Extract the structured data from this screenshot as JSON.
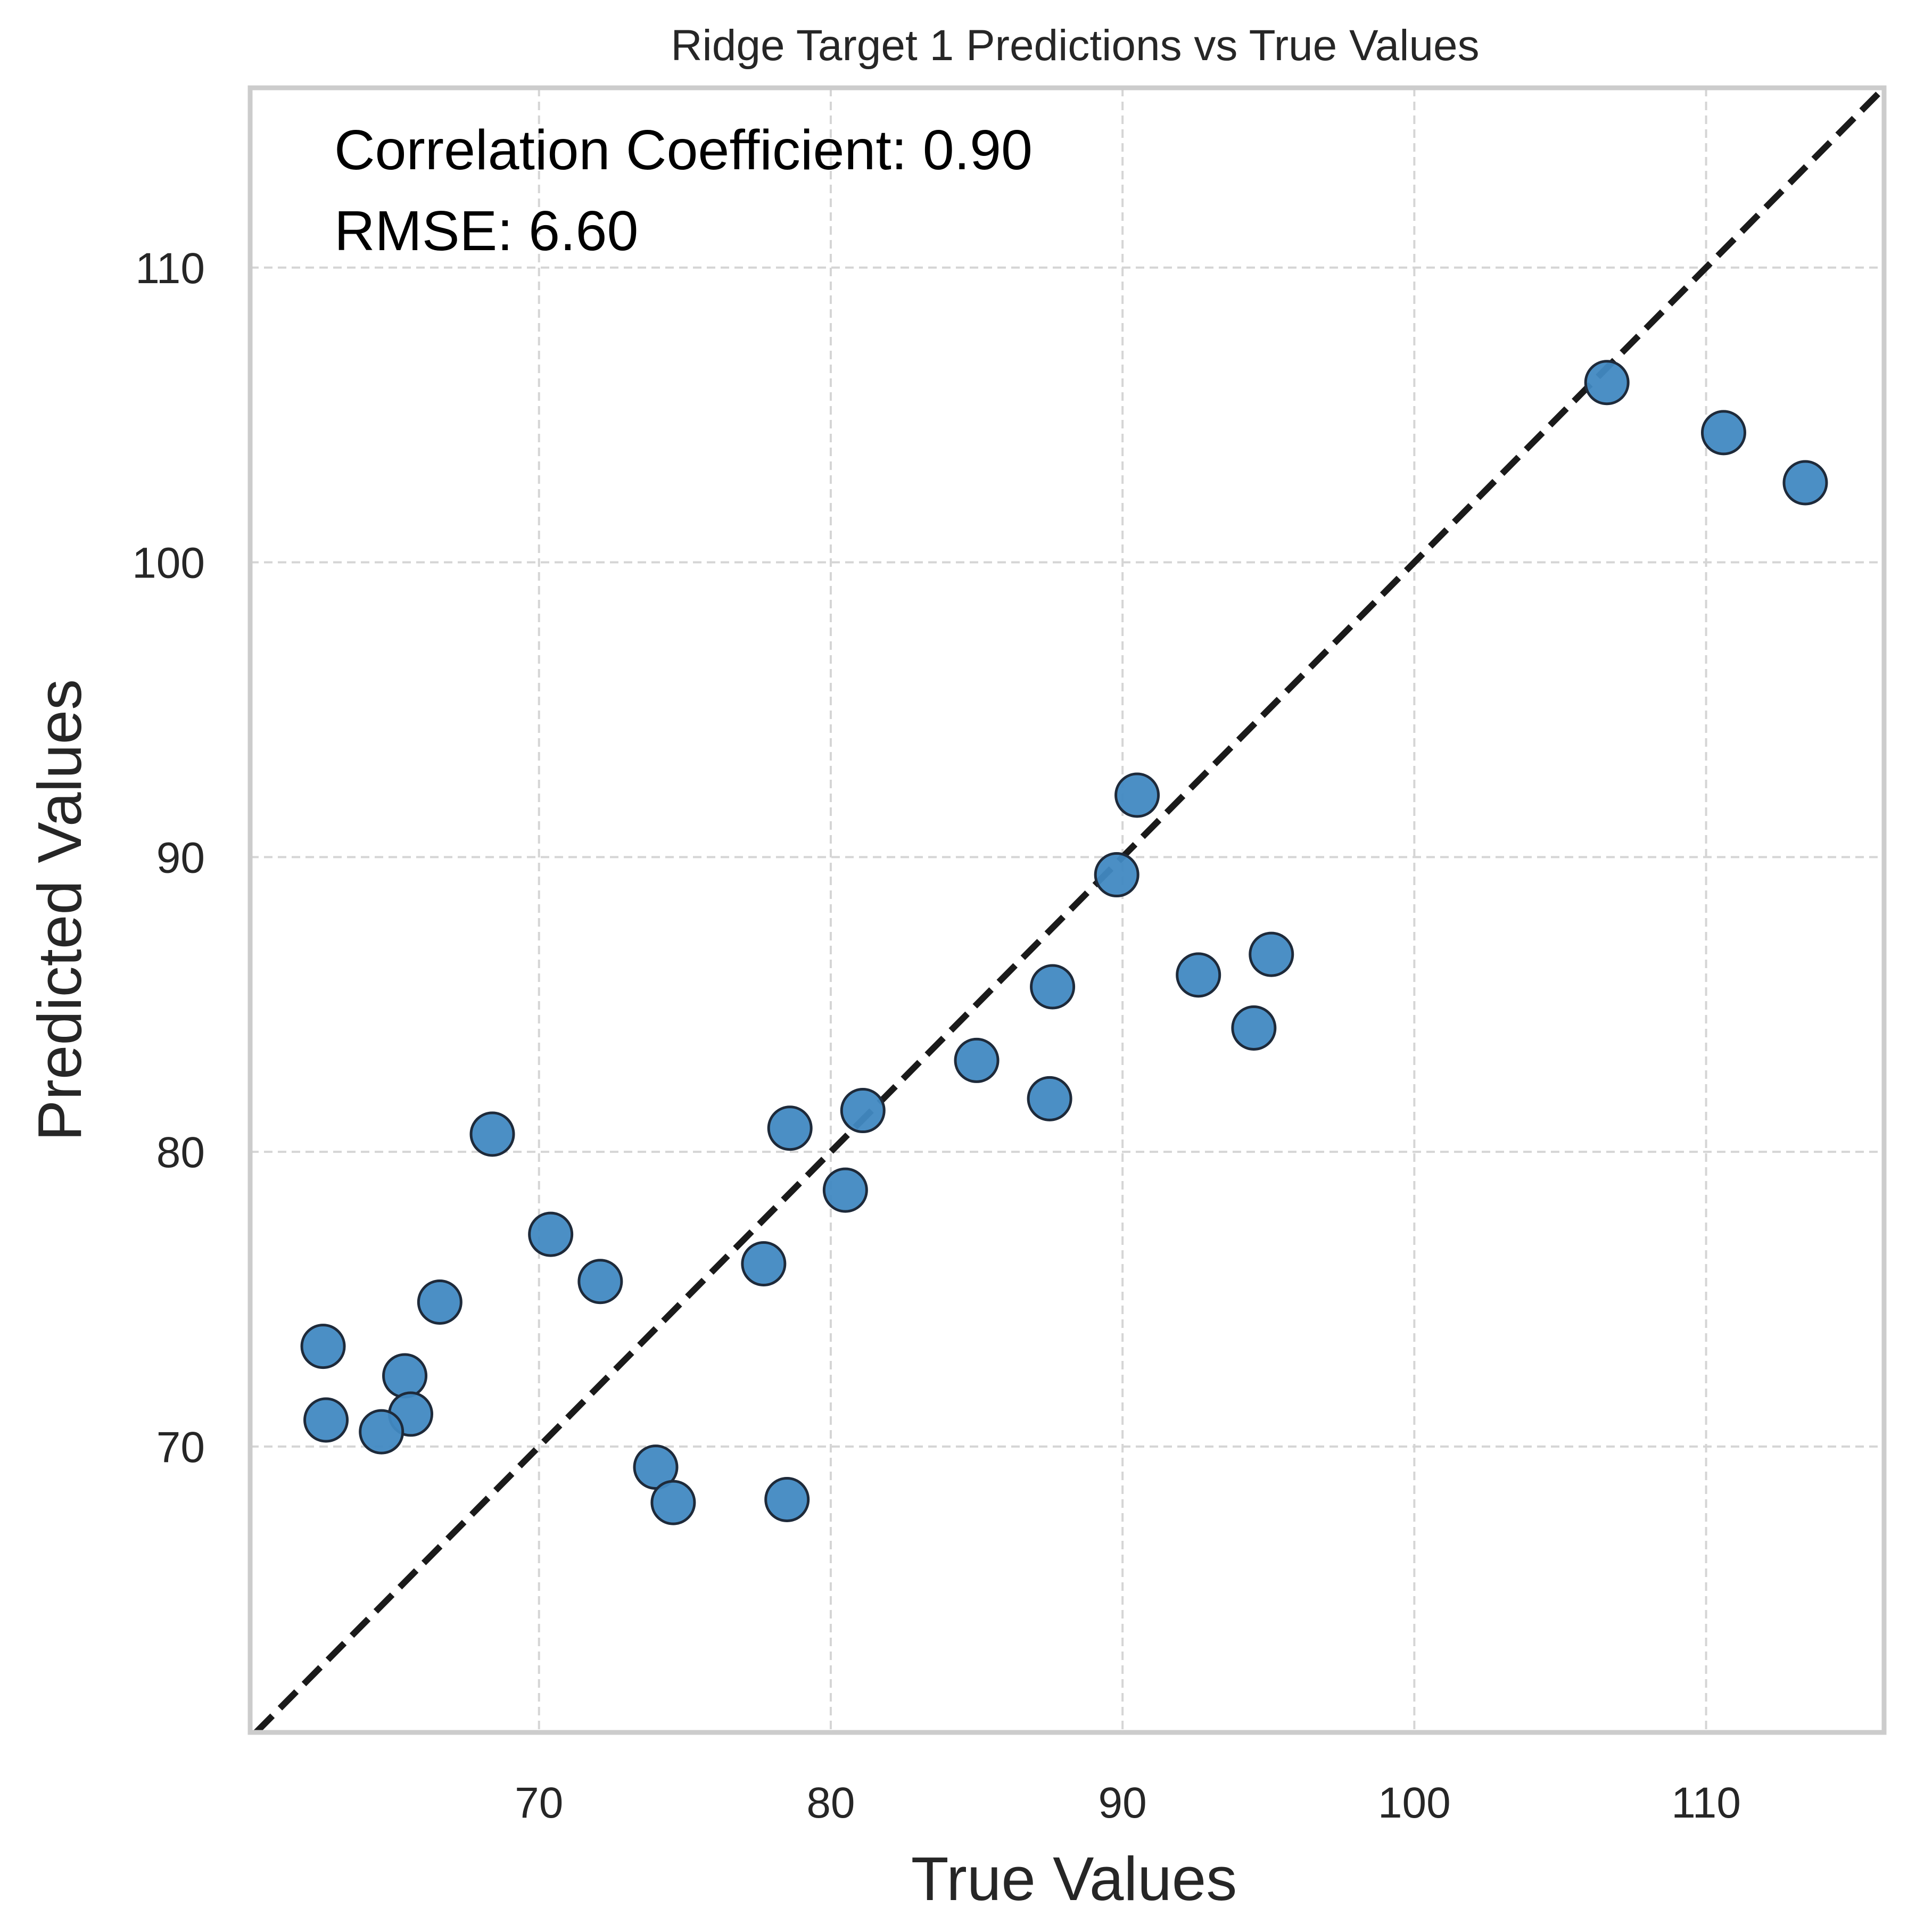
{
  "chart_data": {
    "type": "scatter",
    "title": "Ridge Target 1 Predictions vs True Values",
    "xlabel": "True Values",
    "ylabel": "Predicted Values",
    "xlim": [
      60.1,
      116.1
    ],
    "ylim": [
      60.3,
      116.1
    ],
    "xticks": [
      70,
      80,
      90,
      100,
      110
    ],
    "yticks": [
      70,
      80,
      90,
      100,
      110
    ],
    "grid": true,
    "reference_line": "y = x",
    "annotations": [
      "Correlation Coefficient: 0.90",
      "RMSE: 6.60"
    ],
    "colors": {
      "point_fill": "#4189c2",
      "point_edge": "#1e2a3a",
      "identity_line": "#1a1a1a",
      "spine": "#cccccc",
      "grid": "#d5d5d5"
    },
    "points": [
      {
        "x": 106.6,
        "y": 106.1
      },
      {
        "x": 110.6,
        "y": 104.4
      },
      {
        "x": 113.4,
        "y": 102.7
      },
      {
        "x": 90.5,
        "y": 92.1
      },
      {
        "x": 89.8,
        "y": 89.4
      },
      {
        "x": 95.1,
        "y": 86.7
      },
      {
        "x": 92.6,
        "y": 86.0
      },
      {
        "x": 87.6,
        "y": 85.6
      },
      {
        "x": 94.5,
        "y": 84.2
      },
      {
        "x": 85.0,
        "y": 83.1
      },
      {
        "x": 87.5,
        "y": 81.8
      },
      {
        "x": 81.1,
        "y": 81.4
      },
      {
        "x": 78.6,
        "y": 80.8
      },
      {
        "x": 68.4,
        "y": 80.6
      },
      {
        "x": 80.5,
        "y": 78.7
      },
      {
        "x": 70.4,
        "y": 77.2
      },
      {
        "x": 77.7,
        "y": 76.2
      },
      {
        "x": 72.1,
        "y": 75.6
      },
      {
        "x": 66.6,
        "y": 74.9
      },
      {
        "x": 62.6,
        "y": 73.4
      },
      {
        "x": 65.4,
        "y": 72.4
      },
      {
        "x": 65.6,
        "y": 71.1
      },
      {
        "x": 62.7,
        "y": 70.9
      },
      {
        "x": 64.6,
        "y": 70.5
      },
      {
        "x": 74.0,
        "y": 69.3
      },
      {
        "x": 74.6,
        "y": 68.1
      },
      {
        "x": 78.5,
        "y": 68.2
      }
    ]
  }
}
